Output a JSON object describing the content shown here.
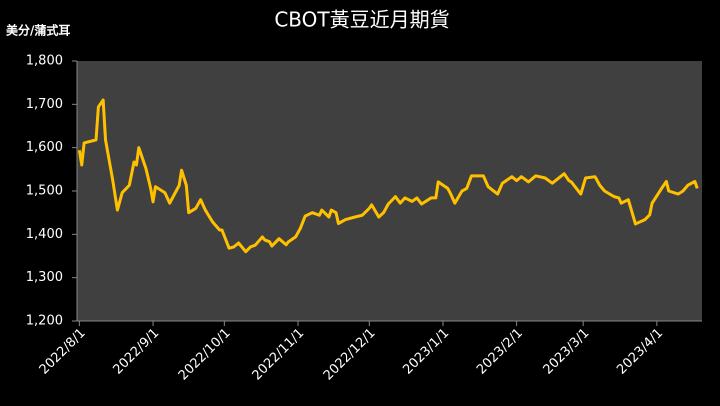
{
  "chart_data": {
    "type": "line",
    "title": "CBOT黃豆近月期貨",
    "y_label": "美分/蒲式耳",
    "color": "#ffc000",
    "grid": false,
    "x": [
      "2022/8/1",
      "2022/8/2",
      "2022/8/3",
      "2022/8/8",
      "2022/8/9",
      "2022/8/11",
      "2022/8/12",
      "2022/8/15",
      "2022/8/17",
      "2022/8/19",
      "2022/8/22",
      "2022/8/24",
      "2022/8/25",
      "2022/8/26",
      "2022/8/29",
      "2022/8/31",
      "2022/9/1",
      "2022/9/2",
      "2022/9/6",
      "2022/9/8",
      "2022/9/12",
      "2022/9/13",
      "2022/9/15",
      "2022/9/16",
      "2022/9/19",
      "2022/9/21",
      "2022/9/23",
      "2022/9/26",
      "2022/9/29",
      "2022/9/30",
      "2022/10/3",
      "2022/10/5",
      "2022/10/7",
      "2022/10/10",
      "2022/10/12",
      "2022/10/14",
      "2022/10/17",
      "2022/10/18",
      "2022/10/20",
      "2022/10/21",
      "2022/10/24",
      "2022/10/27",
      "2022/10/28",
      "2022/10/31",
      "2022/11/2",
      "2022/11/4",
      "2022/11/7",
      "2022/11/10",
      "2022/11/11",
      "2022/11/14",
      "2022/11/15",
      "2022/11/17",
      "2022/11/18",
      "2022/11/21",
      "2022/11/25",
      "2022/11/28",
      "2022/12/1",
      "2022/12/2",
      "2022/12/5",
      "2022/12/7",
      "2022/12/9",
      "2022/12/12",
      "2022/12/14",
      "2022/12/16",
      "2022/12/19",
      "2022/12/21",
      "2022/12/23",
      "2022/12/27",
      "2022/12/29",
      "2022/12/30",
      "2023/1/3",
      "2023/1/4",
      "2023/1/6",
      "2023/1/9",
      "2023/1/11",
      "2023/1/13",
      "2023/1/18",
      "2023/1/20",
      "2023/1/24",
      "2023/1/26",
      "2023/1/30",
      "2023/2/1",
      "2023/2/3",
      "2023/2/6",
      "2023/2/9",
      "2023/2/13",
      "2023/2/16",
      "2023/2/21",
      "2023/2/23",
      "2023/2/24",
      "2023/2/28",
      "2023/3/2",
      "2023/3/6",
      "2023/3/8",
      "2023/3/10",
      "2023/3/14",
      "2023/3/16",
      "2023/3/17",
      "2023/3/20",
      "2023/3/23",
      "2023/3/27",
      "2023/3/29",
      "2023/3/30",
      "2023/4/3",
      "2023/4/5",
      "2023/4/6",
      "2023/4/10",
      "2023/4/12",
      "2023/4/14",
      "2023/4/17",
      "2023/4/18"
    ],
    "values": [
      1594,
      1560,
      1611,
      1618,
      1694,
      1710,
      1618,
      1526,
      1456,
      1496,
      1513,
      1567,
      1560,
      1600,
      1552,
      1506,
      1475,
      1510,
      1496,
      1472,
      1513,
      1548,
      1513,
      1450,
      1460,
      1480,
      1456,
      1429,
      1410,
      1410,
      1368,
      1371,
      1380,
      1360,
      1371,
      1375,
      1394,
      1387,
      1383,
      1373,
      1390,
      1376,
      1383,
      1394,
      1414,
      1442,
      1450,
      1444,
      1456,
      1440,
      1456,
      1450,
      1425,
      1434,
      1440,
      1444,
      1460,
      1468,
      1440,
      1450,
      1470,
      1487,
      1472,
      1484,
      1476,
      1484,
      1470,
      1484,
      1484,
      1521,
      1506,
      1496,
      1472,
      1500,
      1506,
      1535,
      1535,
      1510,
      1493,
      1518,
      1533,
      1524,
      1533,
      1521,
      1535,
      1530,
      1518,
      1540,
      1524,
      1521,
      1493,
      1530,
      1533,
      1513,
      1500,
      1487,
      1484,
      1472,
      1480,
      1424,
      1434,
      1445,
      1472,
      1506,
      1522,
      1500,
      1493,
      1500,
      1513,
      1522,
      1506
    ],
    "xlim": [
      "2022/7/31",
      "2023/4/20"
    ],
    "xticks": [
      "2022/8/1",
      "2022/9/1",
      "2022/10/1",
      "2022/11/1",
      "2022/12/1",
      "2023/1/1",
      "2023/2/1",
      "2023/3/1",
      "2023/4/1"
    ],
    "ylim": [
      1200,
      1800
    ],
    "yticks": [
      {
        "value": 1200,
        "label": "1,200"
      },
      {
        "value": 1300,
        "label": "1,300"
      },
      {
        "value": 1400,
        "label": "1,400"
      },
      {
        "value": 1500,
        "label": "1,500"
      },
      {
        "value": 1600,
        "label": "1,600"
      },
      {
        "value": 1700,
        "label": "1,700"
      },
      {
        "value": 1800,
        "label": "1,800"
      }
    ]
  }
}
